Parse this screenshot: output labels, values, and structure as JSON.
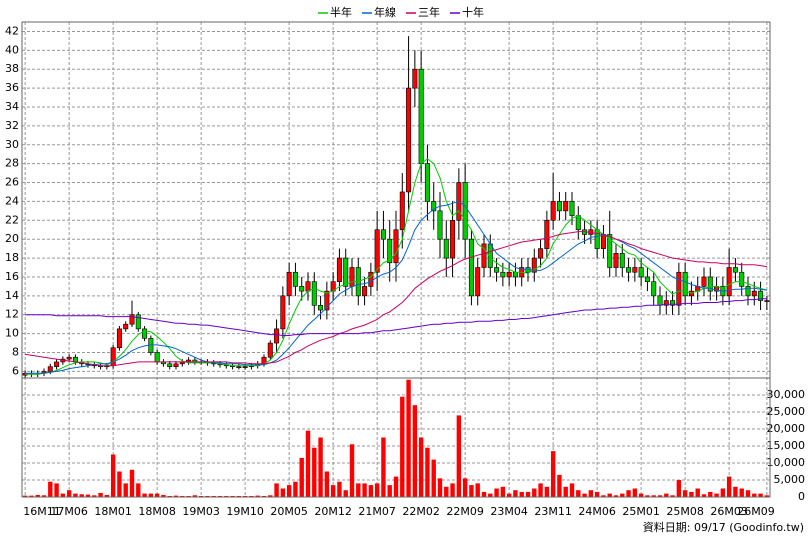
{
  "chart_data": {
    "type": "candlestick",
    "legend": "top",
    "grid": true,
    "footnote": "資料日期: 09/17 (Goodinfo.tw)",
    "up_color": "#ff0000",
    "down_color": "#00cc00",
    "volume_color": "#ff0000",
    "categories": [
      "16M11",
      null,
      null,
      null,
      null,
      null,
      null,
      "17M06",
      null,
      null,
      null,
      null,
      null,
      null,
      "18M01",
      null,
      null,
      null,
      null,
      null,
      null,
      "18M08",
      null,
      null,
      null,
      null,
      null,
      null,
      "19M03",
      null,
      null,
      null,
      null,
      null,
      null,
      "19M10",
      null,
      null,
      null,
      null,
      null,
      null,
      "20M05",
      null,
      null,
      null,
      null,
      null,
      null,
      "20M12",
      null,
      null,
      null,
      null,
      null,
      null,
      "21M07",
      null,
      null,
      null,
      null,
      null,
      null,
      "22M02",
      null,
      null,
      null,
      null,
      null,
      null,
      "22M09",
      null,
      null,
      null,
      null,
      null,
      null,
      "23M04",
      null,
      null,
      null,
      null,
      null,
      null,
      "23M11",
      null,
      null,
      null,
      null,
      null,
      null,
      "24M06",
      null,
      null,
      null,
      null,
      null,
      null,
      "25M01",
      null,
      null,
      null,
      null,
      null,
      null,
      "25M08",
      null,
      null,
      null,
      null,
      null,
      null,
      "26M03",
      null,
      null,
      null,
      null,
      null,
      "26M09"
    ],
    "open": [
      5.6,
      5.8,
      5.7,
      5.8,
      6.0,
      6.5,
      7.0,
      7.3,
      7.5,
      7.0,
      6.8,
      6.7,
      6.6,
      6.5,
      6.6,
      8.5,
      10.5,
      11.0,
      12.0,
      10.5,
      9.5,
      8.0,
      7.0,
      6.8,
      6.5,
      6.8,
      7.0,
      7.2,
      7.0,
      7.0,
      6.9,
      6.8,
      6.7,
      6.6,
      6.5,
      6.5,
      6.5,
      6.6,
      6.8,
      7.5,
      9.0,
      10.5,
      14.0,
      16.5,
      15.0,
      14.5,
      15.5,
      13.0,
      12.5,
      14.5,
      15.5,
      18.0,
      15.0,
      17.0,
      14.0,
      15.0,
      16.5,
      21.0,
      20.0,
      17.5,
      21.0,
      25.0,
      36.0,
      38.0,
      28.0,
      24.0,
      23.0,
      20.0,
      18.0,
      22.0,
      26.0,
      20.0,
      14.0,
      17.0,
      19.5,
      17.0,
      16.5,
      16.0,
      16.5,
      16.0,
      17.0,
      16.5,
      18.0,
      19.0,
      22.0,
      24.0,
      23.0,
      24.0,
      22.5,
      21.0,
      20.5,
      21.0,
      19.0,
      20.5,
      17.0,
      18.5,
      17.0,
      16.5,
      17.0,
      16.0,
      15.5,
      14.0,
      13.0,
      13.5,
      13.0,
      16.5,
      14.0,
      14.5,
      15.0,
      16.0,
      14.5,
      15.0,
      14.0,
      17.0,
      16.5,
      15.0,
      14.0,
      14.5,
      13.5
    ],
    "high": [
      6.1,
      6.1,
      6.1,
      6.3,
      6.8,
      7.3,
      7.6,
      7.8,
      7.8,
      7.3,
      7.1,
      7.0,
      6.9,
      6.9,
      8.8,
      10.8,
      11.3,
      13.5,
      12.3,
      10.8,
      9.8,
      8.3,
      7.3,
      7.1,
      7.1,
      7.3,
      7.5,
      7.5,
      7.3,
      7.3,
      7.2,
      7.1,
      7.0,
      6.9,
      6.8,
      6.8,
      6.9,
      7.1,
      7.8,
      9.3,
      11.5,
      15.0,
      17.5,
      17.5,
      16.0,
      16.5,
      16.5,
      14.0,
      15.5,
      16.5,
      19.0,
      19.0,
      18.0,
      18.0,
      16.0,
      17.5,
      23.0,
      23.0,
      22.0,
      23.0,
      27.0,
      41.5,
      40.0,
      40.0,
      30.0,
      26.0,
      25.0,
      22.0,
      24.0,
      27.5,
      28.0,
      21.0,
      18.0,
      20.5,
      20.5,
      18.0,
      17.5,
      17.5,
      17.5,
      18.0,
      18.0,
      19.0,
      20.0,
      23.0,
      27.0,
      25.0,
      25.0,
      25.0,
      23.5,
      22.0,
      22.0,
      22.0,
      21.5,
      23.0,
      19.5,
      19.5,
      18.0,
      18.0,
      18.0,
      17.0,
      16.5,
      15.0,
      14.5,
      14.5,
      17.5,
      17.5,
      15.5,
      16.0,
      17.0,
      17.0,
      16.0,
      16.0,
      19.0,
      18.0,
      17.5,
      16.0,
      15.5,
      15.5,
      14.0
    ],
    "low": [
      5.3,
      5.4,
      5.4,
      5.5,
      5.7,
      6.2,
      6.7,
      7.0,
      6.7,
      6.5,
      6.4,
      6.3,
      6.2,
      6.2,
      6.3,
      8.2,
      10.2,
      10.7,
      10.2,
      9.2,
      7.7,
      6.7,
      6.5,
      6.2,
      6.2,
      6.5,
      6.7,
      6.7,
      6.7,
      6.6,
      6.5,
      6.4,
      6.3,
      6.2,
      6.2,
      6.2,
      6.2,
      6.3,
      6.5,
      7.2,
      8.0,
      9.5,
      13.0,
      14.0,
      13.5,
      13.5,
      12.0,
      11.5,
      11.5,
      13.5,
      14.5,
      14.0,
      14.0,
      13.0,
      13.0,
      14.0,
      14.5,
      18.0,
      15.5,
      15.5,
      19.0,
      23.0,
      34.0,
      26.0,
      22.0,
      21.0,
      18.0,
      16.0,
      16.0,
      20.0,
      18.0,
      13.0,
      13.0,
      16.0,
      16.0,
      15.5,
      15.0,
      15.0,
      15.0,
      15.0,
      15.5,
      15.5,
      17.0,
      18.0,
      21.0,
      22.0,
      22.0,
      21.5,
      20.0,
      19.5,
      19.5,
      18.0,
      18.0,
      16.0,
      16.0,
      16.0,
      15.5,
      15.5,
      15.0,
      14.5,
      13.0,
      12.0,
      12.0,
      12.0,
      12.0,
      13.0,
      13.0,
      13.5,
      14.0,
      13.5,
      13.5,
      13.0,
      13.0,
      15.5,
      14.0,
      13.0,
      13.0,
      12.5,
      12.5
    ],
    "close": [
      5.8,
      5.7,
      5.8,
      6.0,
      6.5,
      7.0,
      7.3,
      7.5,
      7.0,
      6.8,
      6.7,
      6.6,
      6.5,
      6.6,
      8.5,
      10.5,
      11.0,
      12.0,
      10.5,
      9.5,
      8.0,
      7.0,
      6.8,
      6.5,
      6.8,
      7.0,
      7.2,
      7.0,
      7.0,
      6.9,
      6.8,
      6.7,
      6.6,
      6.5,
      6.5,
      6.5,
      6.6,
      6.8,
      7.5,
      9.0,
      10.5,
      14.0,
      16.5,
      15.0,
      14.5,
      15.5,
      13.0,
      12.5,
      14.5,
      15.5,
      18.0,
      15.0,
      17.0,
      14.0,
      15.0,
      16.5,
      21.0,
      20.0,
      17.5,
      21.0,
      25.0,
      36.0,
      38.0,
      28.0,
      24.0,
      23.0,
      20.0,
      18.0,
      22.0,
      26.0,
      20.0,
      14.0,
      17.0,
      19.5,
      17.0,
      16.5,
      16.0,
      16.5,
      16.0,
      17.0,
      16.5,
      18.0,
      19.0,
      22.0,
      24.0,
      23.0,
      24.0,
      22.5,
      21.0,
      20.5,
      21.0,
      19.0,
      20.5,
      17.0,
      18.5,
      17.0,
      16.5,
      17.0,
      16.0,
      15.5,
      14.0,
      13.0,
      13.5,
      13.0,
      16.5,
      14.0,
      14.5,
      15.0,
      16.0,
      14.5,
      15.0,
      14.0,
      17.0,
      16.5,
      15.0,
      14.0,
      14.5,
      13.5,
      13.5
    ],
    "volume": [
      400,
      400,
      600,
      500,
      4500,
      4000,
      1000,
      2000,
      1000,
      800,
      700,
      500,
      1200,
      600,
      12500,
      7500,
      4000,
      8000,
      4000,
      1000,
      1000,
      1000,
      600,
      300,
      400,
      300,
      300,
      500,
      300,
      300,
      300,
      300,
      300,
      300,
      300,
      300,
      300,
      400,
      300,
      500,
      4000,
      2500,
      3500,
      4500,
      11500,
      19500,
      14500,
      17500,
      7500,
      3500,
      4500,
      2000,
      15500,
      4000,
      4000,
      3500,
      4000,
      17500,
      3500,
      6000,
      29500,
      34500,
      27000,
      17500,
      14500,
      11000,
      5500,
      3000,
      4000,
      24000,
      5500,
      3500,
      4000,
      1500,
      1000,
      2500,
      3000,
      1000,
      2000,
      1500,
      1500,
      2500,
      4000,
      3000,
      13500,
      6500,
      3000,
      4000,
      2000,
      1000,
      2000,
      1500,
      500,
      1000,
      500,
      1000,
      2000,
      2500,
      1000,
      500,
      500,
      500,
      1000,
      500,
      5000,
      2000,
      1500,
      2500,
      800,
      1500,
      1000,
      2500,
      6000,
      3000,
      2500,
      2000,
      1000,
      1000,
      500
    ],
    "series": [
      {
        "name": "半年",
        "color": "#00cc00",
        "values": [
          5.7,
          5.7,
          5.7,
          5.8,
          5.9,
          6.1,
          6.4,
          6.7,
          6.9,
          7.0,
          7.0,
          7.0,
          6.9,
          6.7,
          7.0,
          7.6,
          8.3,
          9.2,
          9.9,
          10.3,
          10.2,
          9.7,
          9.1,
          8.4,
          7.6,
          7.1,
          6.9,
          6.9,
          6.9,
          6.9,
          6.9,
          6.8,
          6.7,
          6.6,
          6.6,
          6.6,
          6.6,
          6.6,
          6.8,
          7.2,
          8.0,
          9.3,
          11.0,
          12.5,
          13.8,
          14.5,
          14.8,
          14.5,
          14.3,
          14.5,
          15.0,
          15.2,
          15.5,
          15.5,
          15.8,
          16.0,
          16.8,
          17.5,
          17.8,
          18.5,
          20.0,
          23.0,
          26.0,
          28.0,
          28.5,
          28.0,
          26.5,
          24.0,
          22.5,
          23.0,
          22.0,
          21.0,
          19.5,
          19.0,
          18.0,
          17.5,
          17.0,
          16.8,
          16.5,
          16.5,
          16.4,
          16.8,
          17.2,
          18.0,
          19.5,
          20.5,
          21.5,
          22.2,
          22.5,
          22.0,
          21.5,
          21.0,
          20.5,
          20.0,
          19.5,
          19.0,
          18.5,
          18.3,
          17.5,
          17.0,
          16.5,
          15.5,
          14.8,
          14.2,
          14.5,
          14.5,
          14.3,
          14.5,
          14.8,
          15.0,
          15.0,
          14.8,
          15.2,
          15.5,
          15.5,
          15.3,
          15.0,
          14.8,
          14.6
        ]
      },
      {
        "name": "年線",
        "color": "#0066cc",
        "values": [
          5.8,
          5.8,
          5.8,
          5.8,
          5.9,
          6.0,
          6.1,
          6.3,
          6.4,
          6.5,
          6.6,
          6.7,
          6.8,
          6.8,
          7.0,
          7.3,
          7.7,
          8.2,
          8.5,
          8.7,
          8.8,
          8.8,
          8.7,
          8.6,
          8.4,
          8.1,
          7.8,
          7.5,
          7.2,
          7.0,
          6.9,
          6.9,
          6.8,
          6.8,
          6.8,
          6.7,
          6.7,
          6.7,
          6.7,
          6.9,
          7.2,
          7.8,
          8.5,
          9.3,
          10.1,
          10.9,
          11.5,
          12.1,
          12.8,
          13.5,
          14.2,
          14.6,
          15.0,
          15.2,
          15.3,
          15.5,
          16.0,
          16.3,
          16.5,
          17.0,
          17.8,
          19.3,
          21.0,
          22.0,
          22.6,
          23.2,
          23.5,
          23.6,
          23.8,
          24.0,
          23.5,
          22.5,
          21.5,
          20.5,
          19.5,
          18.5,
          18.0,
          17.5,
          17.0,
          16.8,
          16.8,
          16.7,
          16.7,
          17.0,
          17.5,
          18.0,
          18.5,
          19.0,
          19.5,
          19.8,
          20.2,
          20.3,
          20.4,
          20.3,
          20.0,
          19.7,
          19.3,
          19.0,
          18.5,
          18.0,
          17.5,
          17.0,
          16.5,
          16.0,
          15.7,
          15.5,
          15.2,
          15.0,
          14.8,
          14.8,
          14.6,
          14.5,
          14.6,
          14.7,
          14.7,
          14.8,
          14.8,
          14.7,
          14.6
        ]
      },
      {
        "name": "三年",
        "color": "#cc0066",
        "values": [
          7.8,
          7.7,
          7.6,
          7.5,
          7.4,
          7.3,
          7.2,
          7.1,
          7.0,
          6.9,
          6.8,
          6.7,
          6.6,
          6.6,
          6.6,
          6.7,
          6.8,
          6.9,
          7.0,
          7.0,
          7.0,
          7.0,
          7.0,
          7.0,
          7.0,
          7.0,
          7.0,
          7.0,
          7.0,
          7.0,
          7.0,
          7.0,
          7.0,
          6.9,
          6.9,
          6.9,
          6.8,
          6.8,
          6.8,
          6.9,
          7.0,
          7.3,
          7.6,
          8.0,
          8.3,
          8.7,
          9.0,
          9.3,
          9.5,
          9.7,
          10.0,
          10.2,
          10.5,
          10.7,
          10.9,
          11.2,
          11.5,
          12.0,
          12.3,
          12.8,
          13.3,
          14.0,
          14.8,
          15.3,
          15.8,
          16.2,
          16.6,
          16.9,
          17.2,
          17.6,
          17.9,
          18.1,
          18.3,
          18.5,
          18.7,
          18.9,
          19.1,
          19.3,
          19.5,
          19.7,
          19.8,
          19.9,
          20.0,
          20.1,
          20.3,
          20.5,
          20.6,
          20.7,
          20.8,
          20.8,
          20.7,
          20.6,
          20.5,
          20.3,
          20.0,
          19.8,
          19.5,
          19.3,
          19.0,
          18.8,
          18.6,
          18.4,
          18.2,
          18.0,
          17.9,
          17.8,
          17.7,
          17.6,
          17.6,
          17.5,
          17.5,
          17.4,
          17.4,
          17.4,
          17.3,
          17.3,
          17.3,
          17.2,
          17.1
        ]
      },
      {
        "name": "十年",
        "color": "#6600cc",
        "values": [
          12.0,
          12.0,
          12.0,
          12.0,
          12.0,
          11.9,
          11.9,
          11.9,
          11.9,
          11.9,
          11.9,
          11.9,
          11.9,
          11.8,
          11.8,
          11.8,
          11.8,
          11.8,
          11.7,
          11.6,
          11.5,
          11.4,
          11.3,
          11.2,
          11.1,
          11.1,
          11.0,
          11.0,
          10.9,
          10.9,
          10.8,
          10.7,
          10.6,
          10.5,
          10.4,
          10.3,
          10.2,
          10.1,
          10.0,
          9.9,
          9.9,
          9.8,
          9.8,
          9.9,
          9.9,
          10.0,
          10.0,
          10.0,
          10.0,
          10.0,
          10.0,
          10.0,
          10.0,
          10.0,
          10.1,
          10.1,
          10.2,
          10.3,
          10.3,
          10.4,
          10.5,
          10.6,
          10.7,
          10.8,
          10.9,
          11.0,
          11.0,
          11.1,
          11.1,
          11.2,
          11.2,
          11.2,
          11.3,
          11.3,
          11.3,
          11.4,
          11.4,
          11.5,
          11.5,
          11.6,
          11.6,
          11.7,
          11.8,
          11.9,
          12.0,
          12.1,
          12.2,
          12.3,
          12.4,
          12.5,
          12.5,
          12.6,
          12.6,
          12.7,
          12.7,
          12.8,
          12.8,
          12.9,
          12.9,
          13.0,
          13.0,
          13.0,
          13.1,
          13.1,
          13.1,
          13.2,
          13.2,
          13.2,
          13.3,
          13.3,
          13.3,
          13.4,
          13.4,
          13.5,
          13.5,
          13.6,
          13.6,
          13.7,
          13.7
        ]
      }
    ],
    "ylim": [
      5.3,
      43
    ],
    "yticks": [
      6,
      8,
      10,
      12,
      14,
      16,
      18,
      20,
      22,
      24,
      26,
      28,
      30,
      32,
      34,
      36,
      38,
      40,
      42
    ],
    "volume_ylim": [
      0,
      35000
    ],
    "volume_yticks": [
      0,
      {
        "value": 5000,
        "label": "5,000"
      },
      {
        "value": 10000,
        "label": "10,000"
      },
      {
        "value": 15000,
        "label": "15,000"
      },
      {
        "value": 20000,
        "label": "20,000"
      },
      {
        "value": 25000,
        "label": "25,000"
      },
      {
        "value": 30000,
        "label": "30,000"
      }
    ]
  }
}
